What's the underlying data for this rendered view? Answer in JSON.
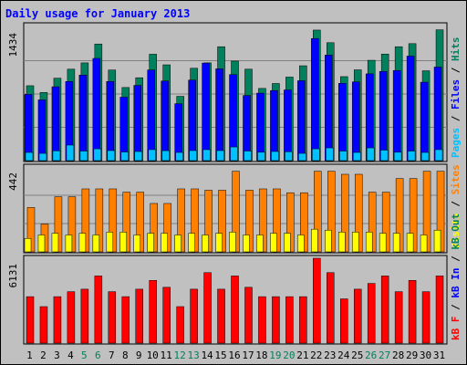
{
  "chart_data": {
    "type": "bar",
    "title": "Daily usage for January 2013",
    "categories": [
      "1",
      "2",
      "3",
      "4",
      "5",
      "6",
      "7",
      "8",
      "9",
      "10",
      "11",
      "12",
      "13",
      "14",
      "15",
      "16",
      "17",
      "18",
      "19",
      "20",
      "21",
      "22",
      "23",
      "24",
      "25",
      "26",
      "27",
      "28",
      "29",
      "30",
      "31"
    ],
    "weekend_days": [
      "5",
      "6",
      "12",
      "13",
      "19",
      "20",
      "26",
      "27"
    ],
    "panels": [
      {
        "id": "hits-files-pages",
        "max_label": "1434",
        "max_value": 1434,
        "ylabel_parts": [
          {
            "text": "Pages",
            "color": "#00C0FF"
          },
          {
            "text": " / ",
            "color": "#000000"
          },
          {
            "text": "Files",
            "color": "#0000FF"
          },
          {
            "text": " / ",
            "color": "#000000"
          },
          {
            "text": "Hits",
            "color": "#00805C"
          }
        ],
        "series": [
          {
            "name": "Hits",
            "color": "#00805C",
            "values": [
              806,
              733,
              887,
              984,
              1052,
              1255,
              975,
              787,
              892,
              1145,
              1031,
              692,
              994,
              1052,
              1226,
              1071,
              984,
              777,
              830,
              899,
              1021,
              1405,
              1269,
              904,
              977,
              1080,
              1147,
              1226,
              1259,
              967,
              1408
            ]
          },
          {
            "name": "Files",
            "color": "#0000FF",
            "values": [
              713,
              654,
              795,
              852,
              921,
              1100,
              852,
              683,
              810,
              976,
              857,
              613,
              867,
              1050,
              988,
              926,
              701,
              726,
              754,
              761,
              860,
              1314,
              1136,
              832,
              848,
              934,
              960,
              970,
              1125,
              844,
              1007
            ]
          },
          {
            "name": "Pages",
            "color": "#00C0FF",
            "values": [
              88,
              78,
              105,
              167,
              103,
              127,
              108,
              93,
              98,
              118,
              107,
              88,
              108,
              118,
              108,
              147,
              103,
              90,
              98,
              95,
              78,
              127,
              137,
              103,
              88,
              137,
              113,
              90,
              103,
              88,
              118
            ]
          }
        ]
      },
      {
        "id": "visits-sites",
        "max_label": "442",
        "max_value": 442,
        "ylabel_parts": [
          {
            "text": "Visits",
            "color": "#FFFF00"
          },
          {
            "text": " / ",
            "color": "#000000"
          },
          {
            "text": "Sites",
            "color": "#FF8000"
          }
        ],
        "series": [
          {
            "name": "Sites",
            "color": "#FF8000",
            "values": [
              231,
              145,
              287,
              287,
              328,
              328,
              328,
              311,
              311,
              252,
              252,
              328,
              328,
              321,
              321,
              420,
              321,
              328,
              328,
              308,
              308,
              420,
              420,
              404,
              404,
              311,
              311,
              382,
              382,
              420,
              420
            ]
          },
          {
            "name": "Visits",
            "color": "#FFFF00",
            "values": [
              70,
              88,
              97,
              88,
              97,
              88,
              103,
              103,
              88,
              97,
              97,
              88,
              97,
              88,
              97,
              103,
              88,
              88,
              97,
              97,
              88,
              118,
              113,
              103,
              103,
              103,
              97,
              97,
              97,
              88,
              113
            ]
          }
        ]
      },
      {
        "id": "kbytes",
        "max_label": "6131",
        "max_value": 6131,
        "ylabel_parts": [
          {
            "text": "kB F",
            "color": "#FF0000"
          },
          {
            "text": " / ",
            "color": "#000000"
          },
          {
            "text": "kB In",
            "color": "#0000FF"
          },
          {
            "text": " / ",
            "color": "#000000"
          },
          {
            "text": "kB Out",
            "color": "#00805C"
          }
        ],
        "series": [
          {
            "name": "kB F",
            "color": "#FF0000",
            "values": [
              3356,
              2636,
              3356,
              3716,
              3896,
              4852,
              3716,
              3356,
              3896,
              4532,
              4032,
              2636,
              3896,
              5092,
              3896,
              4852,
              4032,
              3356,
              3356,
              3356,
              3356,
              6131,
              5092,
              3196,
              3896,
              4312,
              4852,
              3716,
              4532,
              3716,
              4852
            ]
          }
        ]
      }
    ]
  }
}
